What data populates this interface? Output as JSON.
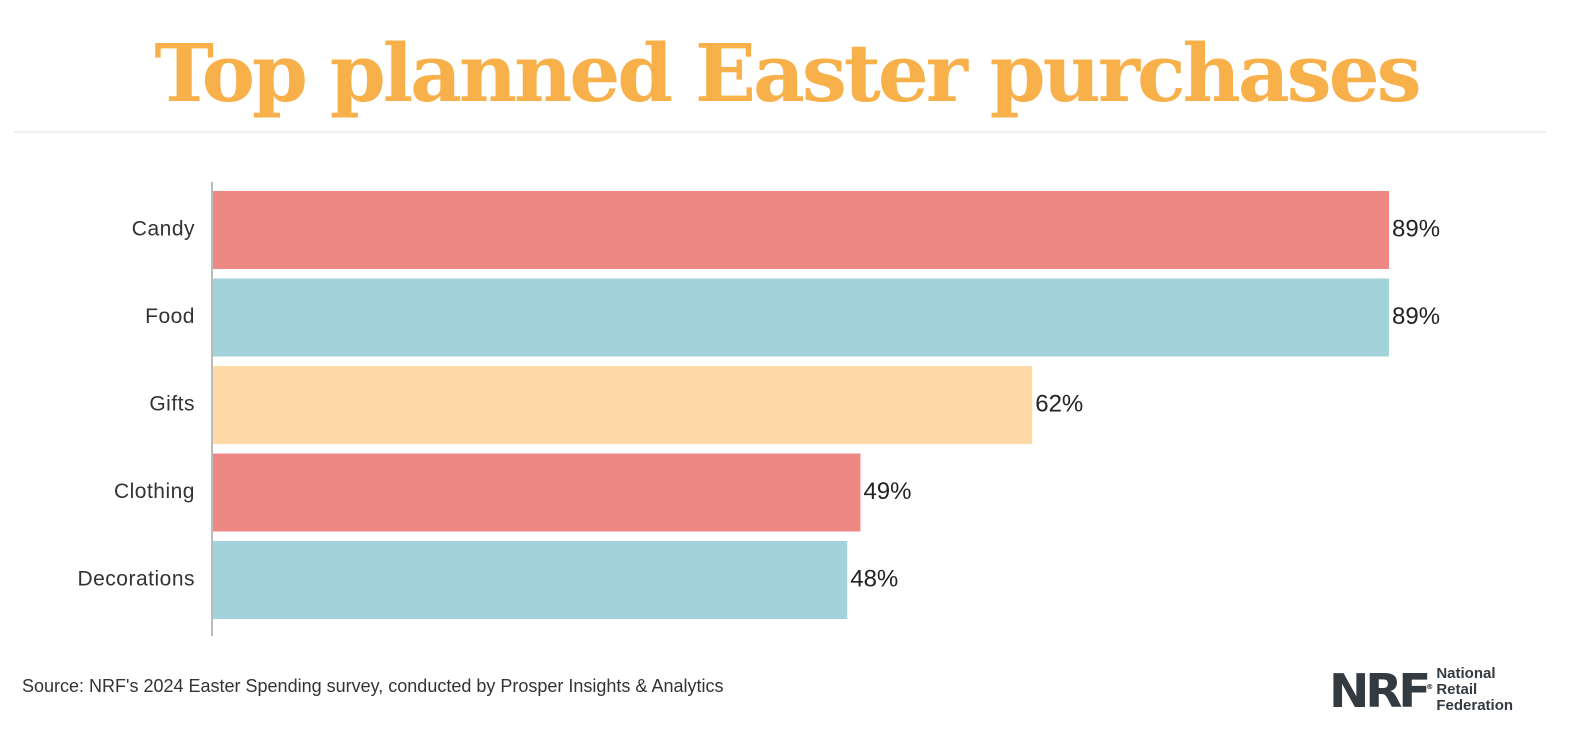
{
  "header": {
    "title": "Top planned Easter purchases"
  },
  "colors": {
    "title": "#f8b04a",
    "bar_pink": "#ee8885",
    "bar_teal": "#a2d2da",
    "bar_peach": "#ffd9a6",
    "axis": "#bbbbbb",
    "logo": "#333a40"
  },
  "chart_data": {
    "type": "bar",
    "orientation": "horizontal",
    "categories": [
      "Candy",
      "Food",
      "Gifts",
      "Clothing",
      "Decorations"
    ],
    "values": [
      89,
      89,
      62,
      49,
      48
    ],
    "value_labels": [
      "89%",
      "89%",
      "62%",
      "49%",
      "48%"
    ],
    "bar_colors": [
      "#ee8885",
      "#a2d2da",
      "#ffd9a6",
      "#ee8885",
      "#a2d2da"
    ],
    "title": "Top planned Easter purchases",
    "xlabel": "",
    "ylabel": "",
    "unit": "%",
    "xlim": [
      0,
      89
    ],
    "grid": false,
    "legend": "none"
  },
  "footer": {
    "source": "Source: NRF's 2024 Easter Spending survey, conducted by Prosper Insights & Analytics"
  },
  "logo": {
    "mark": "NRF",
    "registered": "®",
    "words": [
      "National",
      "Retail",
      "Federation"
    ]
  }
}
